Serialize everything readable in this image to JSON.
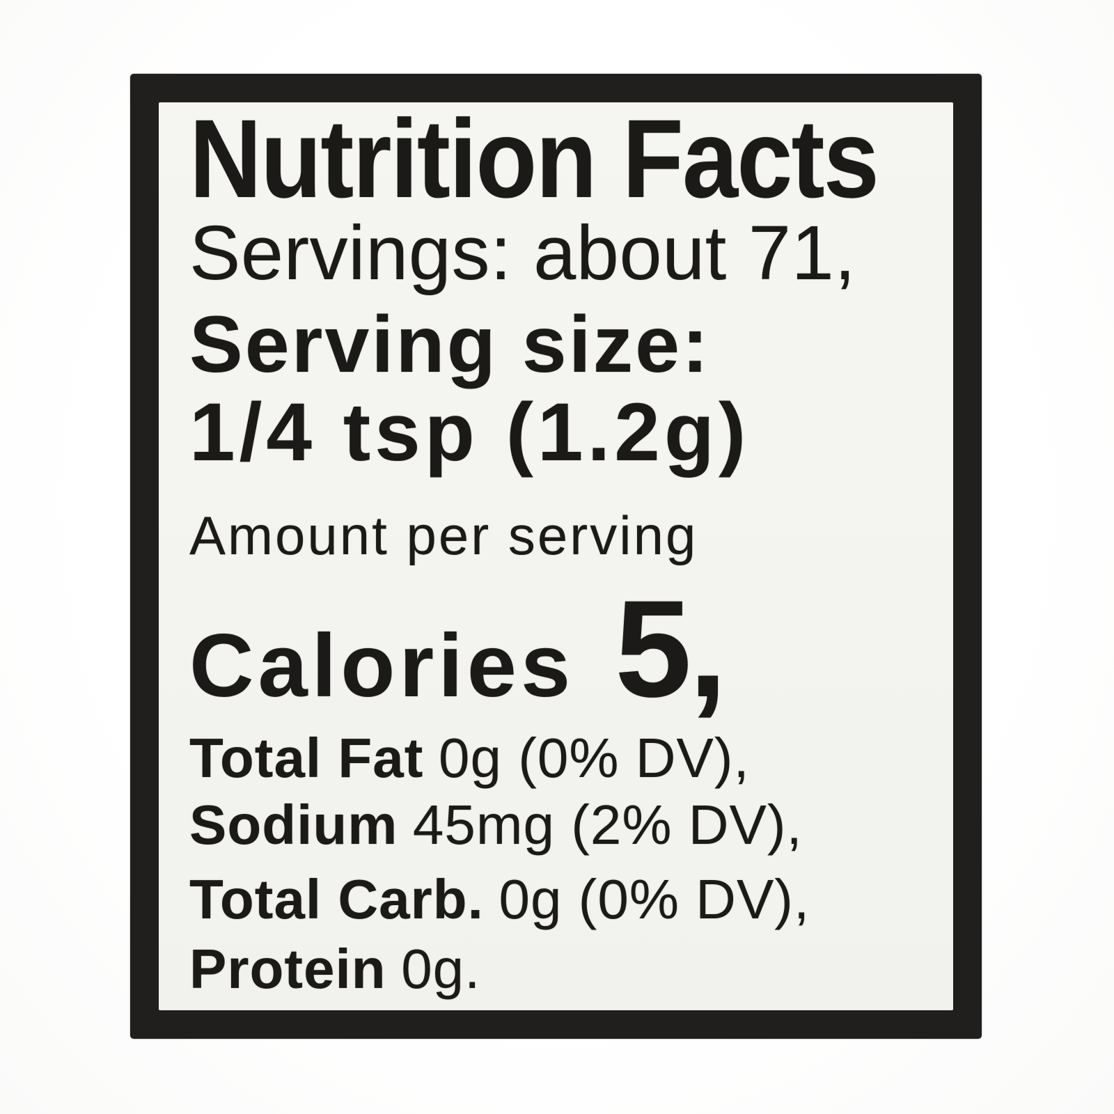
{
  "label": {
    "title": "Nutrition Facts",
    "servings_line": "Servings: about 71,",
    "serving_size_heading": "Serving size:",
    "serving_size_value": "1/4 tsp (1.2g)",
    "amount_per_serving": "Amount per serving",
    "calories": {
      "label": "Calories",
      "value": "5,"
    },
    "nutrients": [
      {
        "name": "Total Fat",
        "value": "0g (0% DV),"
      },
      {
        "name": "Sodium",
        "value": "45mg (2% DV),"
      },
      {
        "name": "Total Carb.",
        "value": "0g (0% DV),"
      },
      {
        "name": "Protein",
        "value": "0g."
      }
    ],
    "colors": {
      "frame": "#201f1d",
      "panel": "#f4f4f0",
      "ink": "#1b1a18",
      "page_background": "#fdfdfd"
    }
  }
}
